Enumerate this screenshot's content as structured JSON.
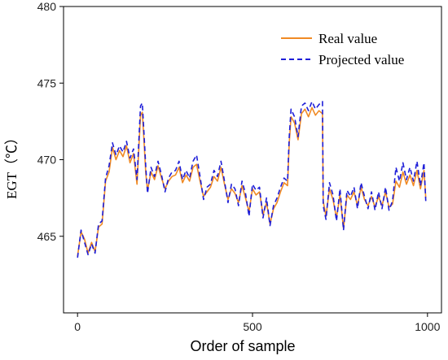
{
  "chart_data": {
    "type": "line",
    "xlabel": "Order of sample",
    "ylabel": "EGT（℃）",
    "xlim": [
      -40,
      1040
    ],
    "ylim": [
      460,
      480
    ],
    "xticks": [
      0,
      500,
      1000
    ],
    "yticks": [
      465,
      470,
      475,
      480
    ],
    "grid": false,
    "legend_position": "top-right",
    "series": [
      {
        "name": "Real value",
        "color": "#F08A24",
        "style": "solid",
        "x": [
          0,
          10,
          20,
          30,
          40,
          50,
          60,
          70,
          80,
          90,
          100,
          110,
          120,
          130,
          140,
          150,
          160,
          170,
          180,
          185,
          190,
          195,
          200,
          210,
          220,
          230,
          240,
          250,
          260,
          270,
          280,
          290,
          300,
          310,
          320,
          330,
          340,
          350,
          360,
          370,
          380,
          390,
          400,
          410,
          420,
          430,
          440,
          450,
          460,
          470,
          480,
          490,
          500,
          510,
          520,
          530,
          540,
          550,
          560,
          570,
          580,
          590,
          600,
          605,
          610,
          620,
          630,
          640,
          650,
          660,
          670,
          680,
          690,
          700,
          702,
          710,
          720,
          730,
          740,
          750,
          760,
          770,
          780,
          790,
          800,
          810,
          820,
          830,
          840,
          850,
          860,
          870,
          880,
          890,
          900,
          910,
          920,
          930,
          940,
          950,
          960,
          970,
          980,
          990,
          995
        ],
        "values": [
          463.7,
          465.3,
          464.8,
          463.9,
          464.6,
          464.0,
          465.6,
          465.8,
          468.6,
          469.2,
          470.8,
          470.0,
          470.6,
          470.2,
          470.9,
          469.8,
          470.4,
          468.4,
          472.9,
          473.1,
          471.2,
          469.1,
          468.0,
          469.2,
          468.7,
          469.6,
          468.8,
          468.1,
          468.6,
          468.9,
          469.0,
          469.5,
          468.5,
          469.0,
          468.6,
          469.5,
          469.7,
          468.6,
          467.6,
          467.9,
          468.2,
          468.9,
          468.6,
          469.5,
          468.4,
          467.4,
          468.1,
          467.8,
          467.2,
          468.3,
          467.5,
          466.6,
          468.1,
          467.7,
          467.9,
          466.4,
          467.2,
          465.8,
          466.8,
          467.2,
          467.9,
          468.5,
          468.3,
          471.1,
          472.8,
          472.4,
          471.3,
          473.0,
          473.3,
          472.8,
          473.4,
          472.9,
          473.2,
          473.0,
          467.3,
          466.3,
          468.1,
          467.4,
          466.2,
          467.7,
          465.5,
          467.7,
          467.4,
          467.9,
          467.0,
          468.2,
          467.4,
          467.0,
          467.6,
          466.9,
          467.6,
          467.0,
          467.9,
          466.9,
          467.1,
          468.6,
          468.2,
          469.2,
          468.4,
          469.0,
          468.3,
          469.3,
          468.1,
          469.3,
          467.5
        ]
      },
      {
        "name": "Projected value",
        "color": "#1E1ED8",
        "style": "dashed",
        "x": [
          0,
          10,
          20,
          30,
          40,
          50,
          60,
          70,
          80,
          90,
          100,
          110,
          120,
          130,
          140,
          150,
          160,
          170,
          180,
          185,
          190,
          195,
          200,
          210,
          220,
          230,
          240,
          250,
          260,
          270,
          280,
          290,
          300,
          310,
          320,
          330,
          340,
          350,
          360,
          370,
          380,
          390,
          400,
          410,
          420,
          430,
          440,
          450,
          460,
          470,
          480,
          490,
          500,
          510,
          520,
          530,
          540,
          550,
          560,
          570,
          580,
          590,
          600,
          605,
          610,
          620,
          630,
          640,
          650,
          660,
          670,
          680,
          690,
          700,
          702,
          710,
          720,
          730,
          740,
          750,
          760,
          770,
          780,
          790,
          800,
          810,
          820,
          830,
          840,
          850,
          860,
          870,
          880,
          890,
          900,
          910,
          920,
          930,
          940,
          950,
          960,
          970,
          980,
          990,
          995
        ],
        "values": [
          463.6,
          465.4,
          464.6,
          463.8,
          464.5,
          463.9,
          465.8,
          466.0,
          468.8,
          469.6,
          471.1,
          470.3,
          470.9,
          470.5,
          471.2,
          470.1,
          470.7,
          468.7,
          473.5,
          473.7,
          471.7,
          469.5,
          467.8,
          469.5,
          468.9,
          469.9,
          469.0,
          467.9,
          468.8,
          469.2,
          469.3,
          469.9,
          468.7,
          469.3,
          468.8,
          469.9,
          470.3,
          468.9,
          467.4,
          468.2,
          468.4,
          469.3,
          468.9,
          469.9,
          468.6,
          467.2,
          468.4,
          468.1,
          467.0,
          468.6,
          467.8,
          466.3,
          468.4,
          468.0,
          468.2,
          466.2,
          467.5,
          465.7,
          467.0,
          467.5,
          468.2,
          468.8,
          468.6,
          471.5,
          473.3,
          472.8,
          471.5,
          473.5,
          473.7,
          473.2,
          473.8,
          473.3,
          473.6,
          473.8,
          467.0,
          466.1,
          468.5,
          467.7,
          466.0,
          468.1,
          465.4,
          468.0,
          467.6,
          468.2,
          466.8,
          468.5,
          467.6,
          466.8,
          467.9,
          466.7,
          467.9,
          466.8,
          468.2,
          466.7,
          467.3,
          469.5,
          468.6,
          469.8,
          468.7,
          469.5,
          468.6,
          469.9,
          468.3,
          469.8,
          467.3
        ]
      }
    ]
  }
}
